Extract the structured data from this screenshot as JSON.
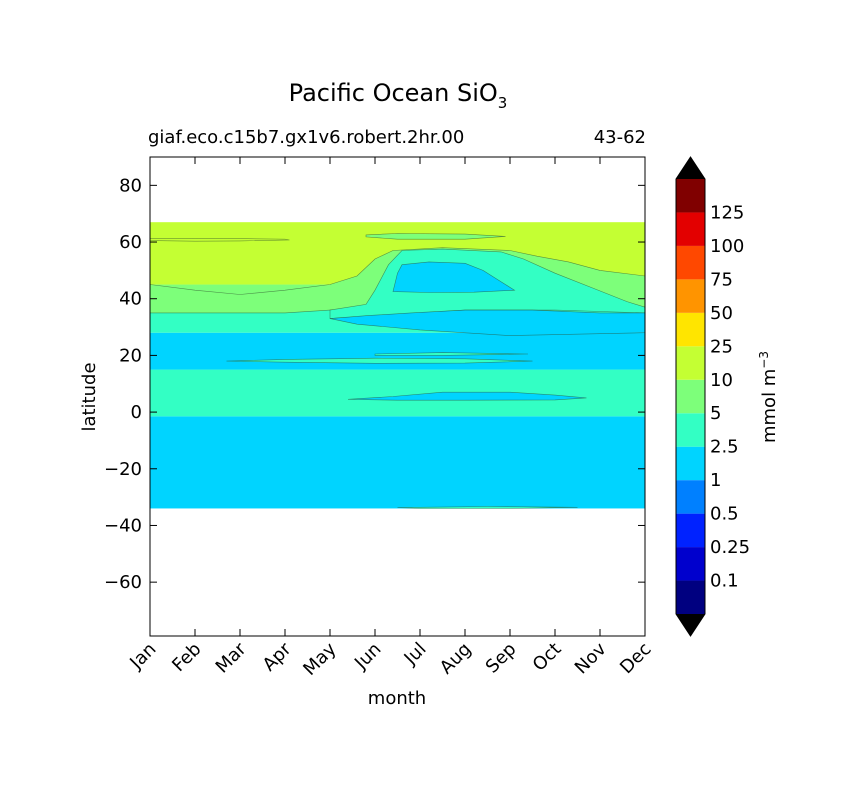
{
  "chart_data": {
    "type": "contourf",
    "title_main": "Pacific Ocean SiO",
    "title_sub": "3",
    "case_name": "giaf.eco.c15b7.gx1v6.robert.2hr.00",
    "years": "43-62",
    "xlabel": "month",
    "ylabel": "latitude",
    "x_categories": [
      "Jan",
      "Feb",
      "Mar",
      "Apr",
      "May",
      "Jun",
      "Jul",
      "Aug",
      "Sep",
      "Oct",
      "Nov",
      "Dec"
    ],
    "y_ticks": [
      80,
      60,
      40,
      20,
      0,
      -20,
      -40,
      -60
    ],
    "y_tick_labels": [
      "80",
      "60",
      "40",
      "20",
      "0",
      "−20",
      "−40",
      "−60"
    ],
    "ylim": [
      -79,
      90
    ],
    "xlim": [
      0,
      11
    ],
    "colorbar": {
      "label_base": "mmol m",
      "label_exp": "−3",
      "levels": [
        0.1,
        0.25,
        0.5,
        1,
        2.5,
        5,
        10,
        25,
        50,
        75,
        100,
        125
      ],
      "level_labels": [
        "0.1",
        "0.25",
        "0.5",
        "1",
        "2.5",
        "5",
        "10",
        "25",
        "50",
        "75",
        "100",
        "125"
      ],
      "bin_colors": [
        "#000080",
        "#0000cd",
        "#0022ff",
        "#0080ff",
        "#00d4ff",
        "#33ffc4",
        "#7dff7a",
        "#c4ff33",
        "#ffe500",
        "#ff9400",
        "#ff4800",
        "#e30000",
        "#800000"
      ],
      "extend_low_color": "#000000",
      "extend_high_color": "#000000"
    },
    "regions": [
      {
        "name": "southern-band",
        "bin": "1-2.5",
        "color": "#00d4ff",
        "y0": -34,
        "y1": -1.5
      },
      {
        "name": "equatorial-band",
        "bin": "2.5-5",
        "color": "#33ffc4",
        "y0": -1.5,
        "y1": 15
      },
      {
        "name": "tropical-band",
        "bin": "1-2.5",
        "color": "#00d4ff",
        "y0": 15,
        "y1": 28
      },
      {
        "name": "subtropical-band",
        "bin": "2.5-5",
        "color": "#33ffc4",
        "y0": 28,
        "y1": 36
      },
      {
        "name": "midlat-band",
        "bin": "5-10",
        "color": "#7dff7a",
        "y0": 36,
        "y1": 45
      },
      {
        "name": "subpolar-band",
        "bin": "10-25",
        "color": "#c4ff33",
        "y0": 45,
        "y1": 67
      }
    ]
  }
}
